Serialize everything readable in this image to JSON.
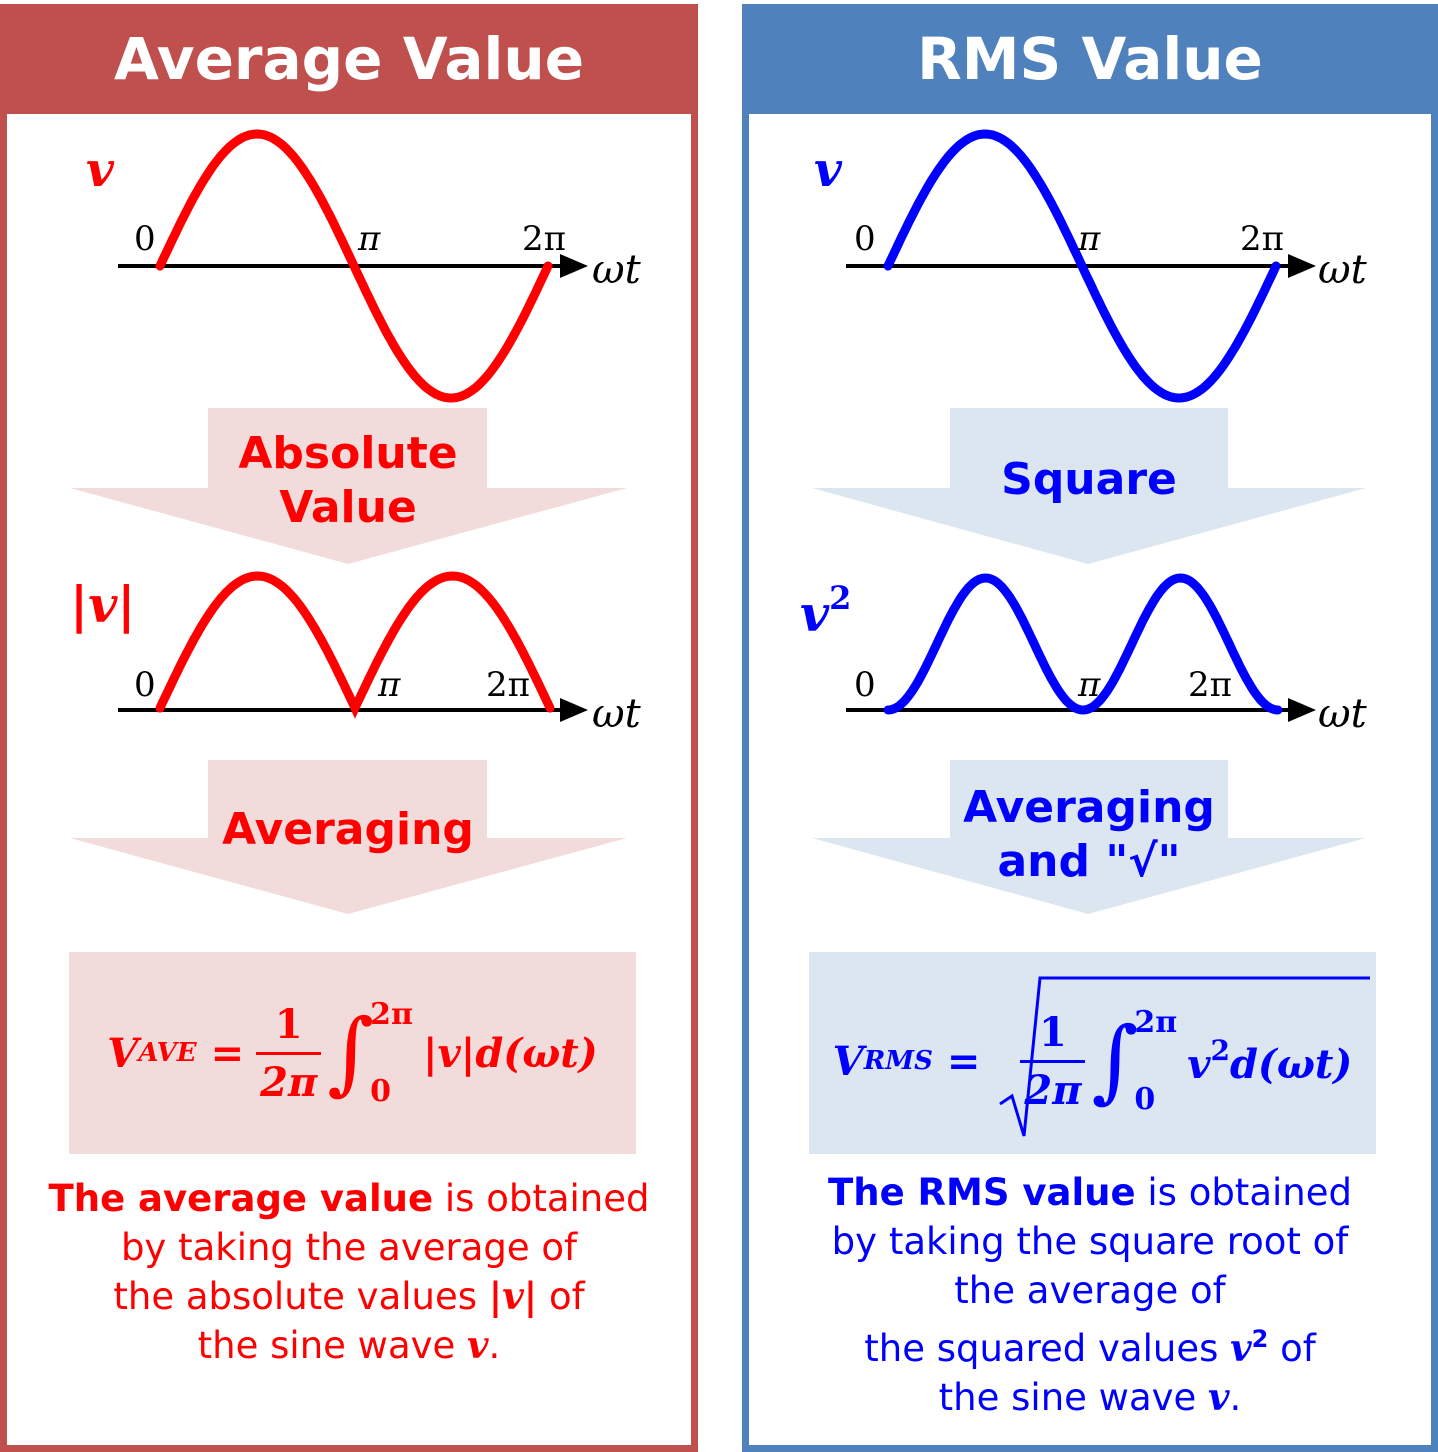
{
  "left": {
    "header": "Average Value",
    "color": "#ff0000",
    "box_color": "#c0504d",
    "arrow_fill": "#f2dcdb",
    "wave1_label": "v",
    "wave2_label": "|v|",
    "tick_0": "0",
    "tick_pi": "π",
    "tick_2pi": "2π",
    "axis_label": "ωt",
    "arrow1_line1": "Absolute",
    "arrow1_line2": "Value",
    "arrow2_line1": "Averaging",
    "formula": {
      "lhs": "V",
      "lhs_sub": "AVE",
      "equals": "=",
      "numerator": "1",
      "denominator": "2π",
      "upper": "2π",
      "lower": "0",
      "integrand": "|v|d(ωt)"
    },
    "desc": {
      "bold_part": "The average value",
      "line1_rest": " is obtained",
      "line2": "by taking the average of",
      "line3_pre": "the absolute values ",
      "line3_var": "|v|",
      "line3_post": " of",
      "line4_pre": "the sine wave ",
      "line4_var": "v",
      "line4_post": "."
    }
  },
  "right": {
    "header": "RMS Value",
    "color": "#0000ff",
    "box_color": "#4f81bd",
    "arrow_fill": "#dce6f1",
    "wave1_label": "v",
    "wave2_label": "v",
    "wave2_sup": "2",
    "tick_0": "0",
    "tick_pi": "π",
    "tick_2pi": "2π",
    "axis_label": "ωt",
    "arrow1_line1": "Square",
    "arrow2_line1": "Averaging",
    "arrow2_line2": "and \"√\"",
    "formula": {
      "lhs": "V",
      "lhs_sub": "RMS",
      "equals": "=",
      "numerator": "1",
      "denominator": "2π",
      "upper": "2π",
      "lower": "0",
      "integrand_var": "v",
      "integrand_sup": "2",
      "integrand_rest": "d(ωt)"
    },
    "desc": {
      "bold_part": "The RMS value",
      "line1_rest": " is obtained",
      "line2": "by taking the square root of",
      "line3": "the average of",
      "line4_pre": "the squared values ",
      "line4_var": "v",
      "line4_sup": "2",
      "line4_post": " of",
      "line5_pre": "the sine wave ",
      "line5_var": "v",
      "line5_post": "."
    }
  }
}
